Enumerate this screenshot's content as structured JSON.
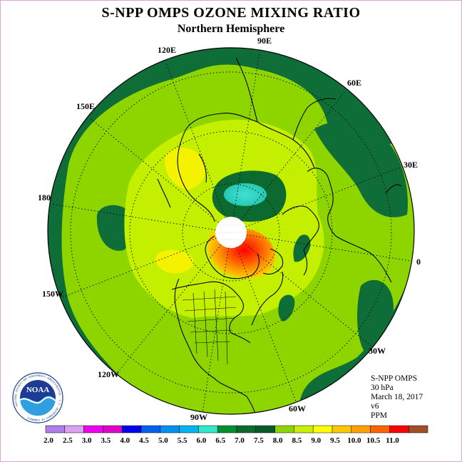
{
  "header": {
    "title": "S-NPP OMPS OZONE MIXING RATIO",
    "subtitle": "Northern Hemisphere"
  },
  "map": {
    "projection": "north-polar-stereographic",
    "longitude_labels": [
      "90E",
      "60E",
      "30E",
      "0",
      "30W",
      "60W",
      "90W",
      "120W",
      "150W",
      "180",
      "150E",
      "120E"
    ],
    "regions": [
      {
        "name": "outer ring",
        "level": "6.5-7.0",
        "color": "#0f6e37"
      },
      {
        "name": "broad mid-latitude band",
        "level": "7.5-8.0",
        "color": "#8ed500"
      },
      {
        "name": "inner band",
        "level": "8.0-8.5",
        "color": "#bfef00"
      },
      {
        "name": "Siberian minimum",
        "level": "5.0-5.5",
        "color": "#2dd7c2"
      },
      {
        "name": "Greenland maximum",
        "level": "10.0-10.5",
        "color": "#ff1200"
      }
    ]
  },
  "info": {
    "lines": [
      "S-NPP OMPS",
      "30 hPa",
      "March 18, 2017",
      "v6",
      "PPM"
    ]
  },
  "logo": {
    "text": "NOAA",
    "ring_text": "NATIONAL OCEANIC AND ATMOSPHERIC ADMINISTRATION · U.S. DEPARTMENT OF COMMERCE"
  },
  "colorbar": {
    "colors": [
      "#b07ee8",
      "#dca0f0",
      "#ee00ee",
      "#e000c8",
      "#0000f0",
      "#0060f0",
      "#0090f0",
      "#00b4f0",
      "#30e8c8",
      "#009030",
      "#0c6a30",
      "#0a5a28",
      "#8ed500",
      "#c8f000",
      "#ffff00",
      "#ffc800",
      "#ffa000",
      "#ff6400",
      "#ff0000",
      "#a05028"
    ],
    "labels": [
      "2.0",
      "2.5",
      "3.0",
      "3.5",
      "4.0",
      "4.5",
      "5.0",
      "5.5",
      "6.0",
      "6.5",
      "7.0",
      "7.5",
      "8.0",
      "8.5",
      "9.0",
      "9.5",
      "10.0",
      "10.5",
      "11.0"
    ]
  }
}
